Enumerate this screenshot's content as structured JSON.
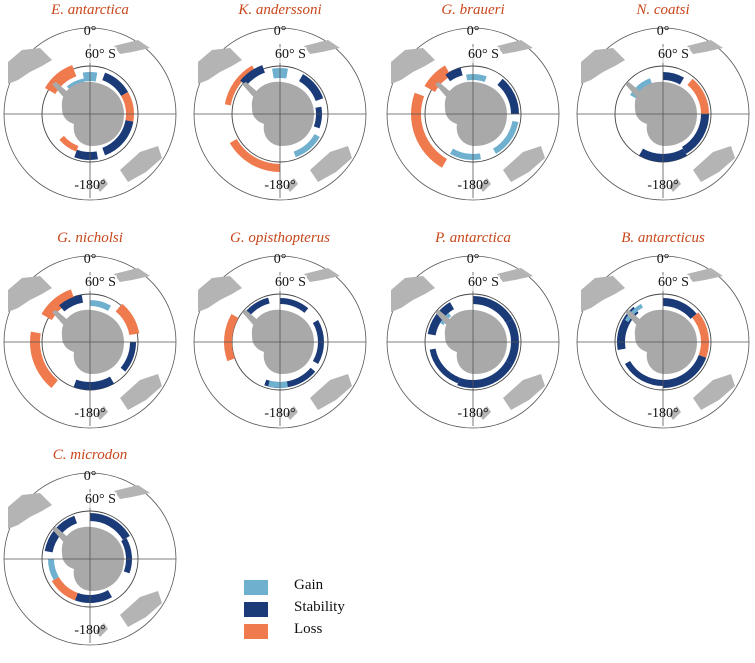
{
  "labels": {
    "top": "0°",
    "lat": "60° S",
    "bottom": "-180°"
  },
  "panels": [
    {
      "name": "E. antarctica"
    },
    {
      "name": "K. anderssoni"
    },
    {
      "name": "G. braueri"
    },
    {
      "name": "N. coatsi"
    },
    {
      "name": "G. nicholsi"
    },
    {
      "name": "G. opisthopterus"
    },
    {
      "name": "P. antarctica"
    },
    {
      "name": "B. antarcticus"
    },
    {
      "name": "C. microdon"
    }
  ],
  "legend": [
    {
      "label": "Gain",
      "color": "#6fb0cf"
    },
    {
      "label": "Stability",
      "color": "#1a3a78"
    },
    {
      "label": "Loss",
      "color": "#ef7a4e"
    }
  ],
  "colors": {
    "land": "#b4b4b4",
    "antarctica": "#a9a9a9",
    "title": "#c8471b"
  }
}
